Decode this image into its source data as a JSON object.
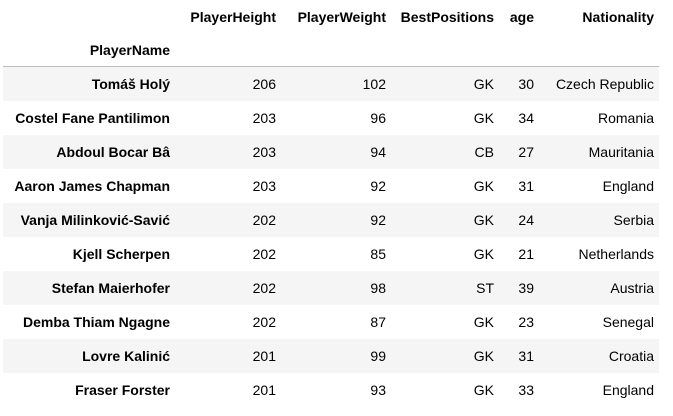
{
  "table": {
    "index_name": "PlayerName",
    "columns": [
      "PlayerHeight",
      "PlayerWeight",
      "BestPositions",
      "age",
      "Nationality"
    ],
    "rows": [
      {
        "name": "Tomáš Holý",
        "height": "206",
        "weight": "102",
        "position": "GK",
        "age": "30",
        "nationality": "Czech Republic"
      },
      {
        "name": "Costel Fane Pantilimon",
        "height": "203",
        "weight": "96",
        "position": "GK",
        "age": "34",
        "nationality": "Romania"
      },
      {
        "name": "Abdoul Bocar Bâ",
        "height": "203",
        "weight": "94",
        "position": "CB",
        "age": "27",
        "nationality": "Mauritania"
      },
      {
        "name": "Aaron James Chapman",
        "height": "203",
        "weight": "92",
        "position": "GK",
        "age": "31",
        "nationality": "England"
      },
      {
        "name": "Vanja Milinković-Savić",
        "height": "202",
        "weight": "92",
        "position": "GK",
        "age": "24",
        "nationality": "Serbia"
      },
      {
        "name": "Kjell Scherpen",
        "height": "202",
        "weight": "85",
        "position": "GK",
        "age": "21",
        "nationality": "Netherlands"
      },
      {
        "name": "Stefan Maierhofer",
        "height": "202",
        "weight": "98",
        "position": "ST",
        "age": "39",
        "nationality": "Austria"
      },
      {
        "name": "Demba Thiam Ngagne",
        "height": "202",
        "weight": "87",
        "position": "GK",
        "age": "23",
        "nationality": "Senegal"
      },
      {
        "name": "Lovre Kalinić",
        "height": "201",
        "weight": "99",
        "position": "GK",
        "age": "31",
        "nationality": "Croatia"
      },
      {
        "name": "Fraser Forster",
        "height": "201",
        "weight": "93",
        "position": "GK",
        "age": "33",
        "nationality": "England"
      }
    ]
  },
  "colors": {
    "stripe": "#f5f5f5",
    "header_rule": "#bdbdbd",
    "text": "#000000"
  }
}
